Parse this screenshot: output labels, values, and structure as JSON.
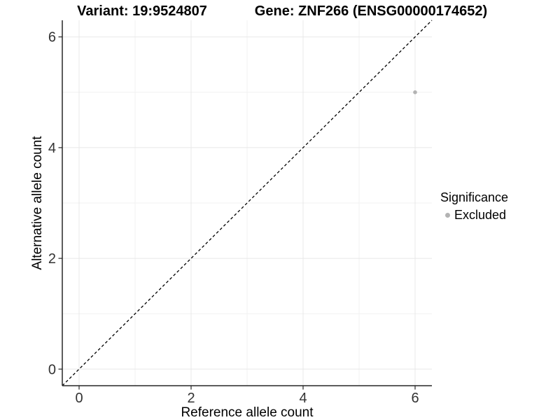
{
  "chart_data": {
    "type": "scatter",
    "titles": [
      "Variant: 19:9524807",
      "Gene: ZNF266 (ENSG00000174652)"
    ],
    "xlabel": "Reference allele count",
    "ylabel": "Alternative allele count",
    "xlim": [
      -0.3,
      6.3
    ],
    "ylim": [
      -0.3,
      6.3
    ],
    "x_ticks": [
      0,
      2,
      4,
      6
    ],
    "y_ticks": [
      0,
      2,
      4,
      6
    ],
    "x_minor_ticks": [
      1,
      3,
      5
    ],
    "y_minor_ticks": [
      1,
      3,
      5
    ],
    "grid": "major and minor gridlines on white background",
    "reference_line": {
      "type": "identity",
      "slope": 1,
      "intercept": 0,
      "style": "dashed",
      "color": "#000000"
    },
    "series": [
      {
        "name": "Excluded",
        "color": "#b3b3b3",
        "points": [
          {
            "x": 6,
            "y": 5
          }
        ]
      }
    ],
    "legend": {
      "title": "Significance",
      "position": "right",
      "items": [
        {
          "label": "Excluded",
          "color": "#b3b3b3"
        }
      ]
    }
  },
  "colors": {
    "background": "#ffffff",
    "grid_major": "#e8e8e8",
    "grid_minor": "#f2f2f2",
    "axis_line": "#262626",
    "tick_text": "#333333",
    "title_text": "#000000"
  }
}
